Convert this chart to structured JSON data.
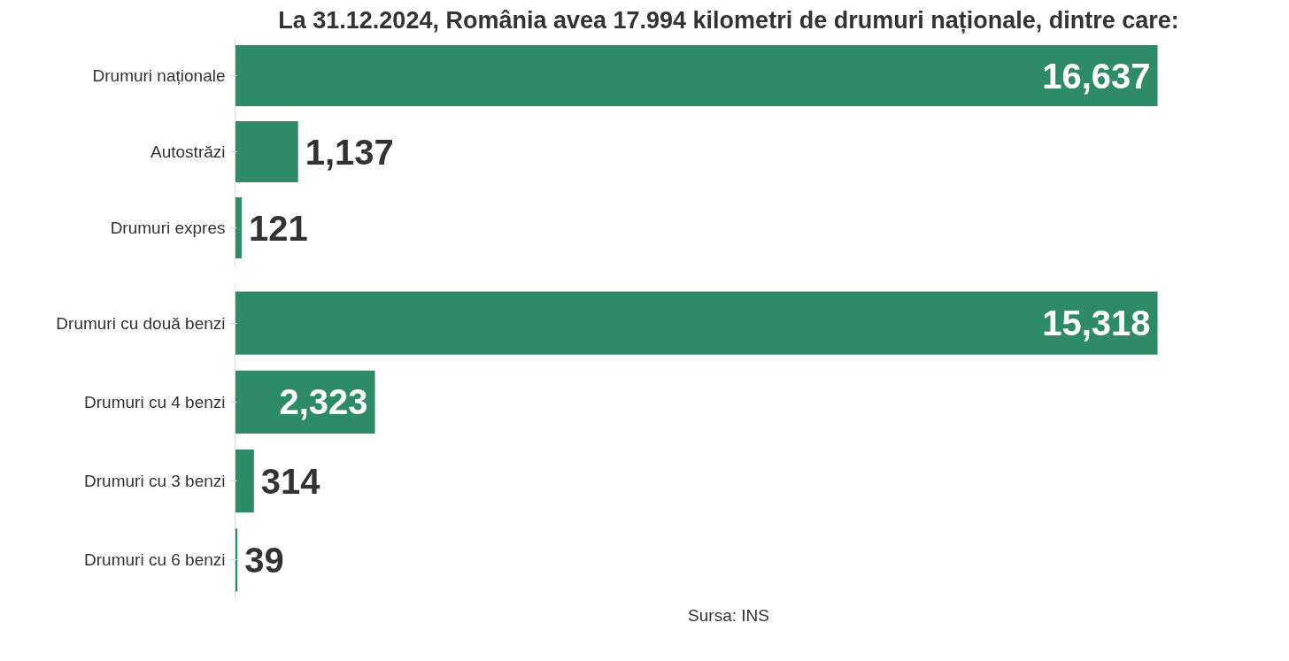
{
  "chart_data": [
    {
      "type": "bar",
      "orientation": "horizontal",
      "title": "La 31.12.2024, România avea 17.994 kilometri de drumuri naționale, dintre care:",
      "categories": [
        "Drumuri naționale",
        "Autostrăzi",
        "Drumuri expres"
      ],
      "values": [
        16637,
        1137,
        121
      ],
      "value_labels": [
        "16,637",
        "1,137",
        "121"
      ],
      "color": "#2e8b67",
      "tick_labels": "y",
      "grid": false
    },
    {
      "type": "bar",
      "orientation": "horizontal",
      "categories": [
        "Drumuri cu două benzi",
        "Drumuri cu 4 benzi",
        "Drumuri cu 3 benzi",
        "Drumuri cu 6 benzi"
      ],
      "values": [
        15318,
        2323,
        314,
        39
      ],
      "value_labels": [
        "15,318",
        "2,323",
        "314",
        "39"
      ],
      "color": "#2e8b67",
      "tick_labels": "y",
      "grid": false,
      "annotations": [
        "Sursa: INS"
      ]
    }
  ]
}
